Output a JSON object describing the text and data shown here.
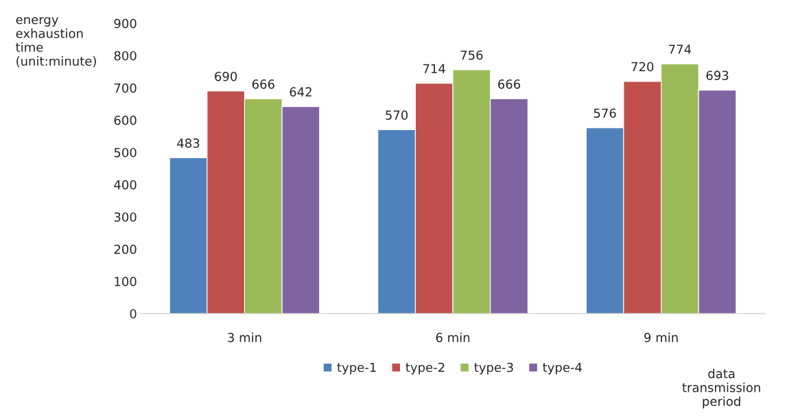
{
  "chart_data": {
    "type": "bar",
    "ylabel": "energy\nexhaustion\ntime\n(unit:minute)",
    "xlabel": "data\ntransmission\nperiod",
    "categories": [
      "3 min",
      "6 min",
      "9 min"
    ],
    "series": [
      {
        "name": "type-1",
        "color": "#4f81bd",
        "values": [
          483,
          570,
          576
        ]
      },
      {
        "name": "type-2",
        "color": "#c0504d",
        "values": [
          690,
          714,
          720
        ]
      },
      {
        "name": "type-3",
        "color": "#9bbb59",
        "values": [
          666,
          756,
          774
        ]
      },
      {
        "name": "type-4",
        "color": "#8064a2",
        "values": [
          642,
          666,
          693
        ]
      }
    ],
    "ylim": [
      0,
      900
    ],
    "yticks": [
      0,
      100,
      200,
      300,
      400,
      500,
      600,
      700,
      800,
      900
    ],
    "data_labels": true,
    "grid": false,
    "legend": "bottom"
  }
}
